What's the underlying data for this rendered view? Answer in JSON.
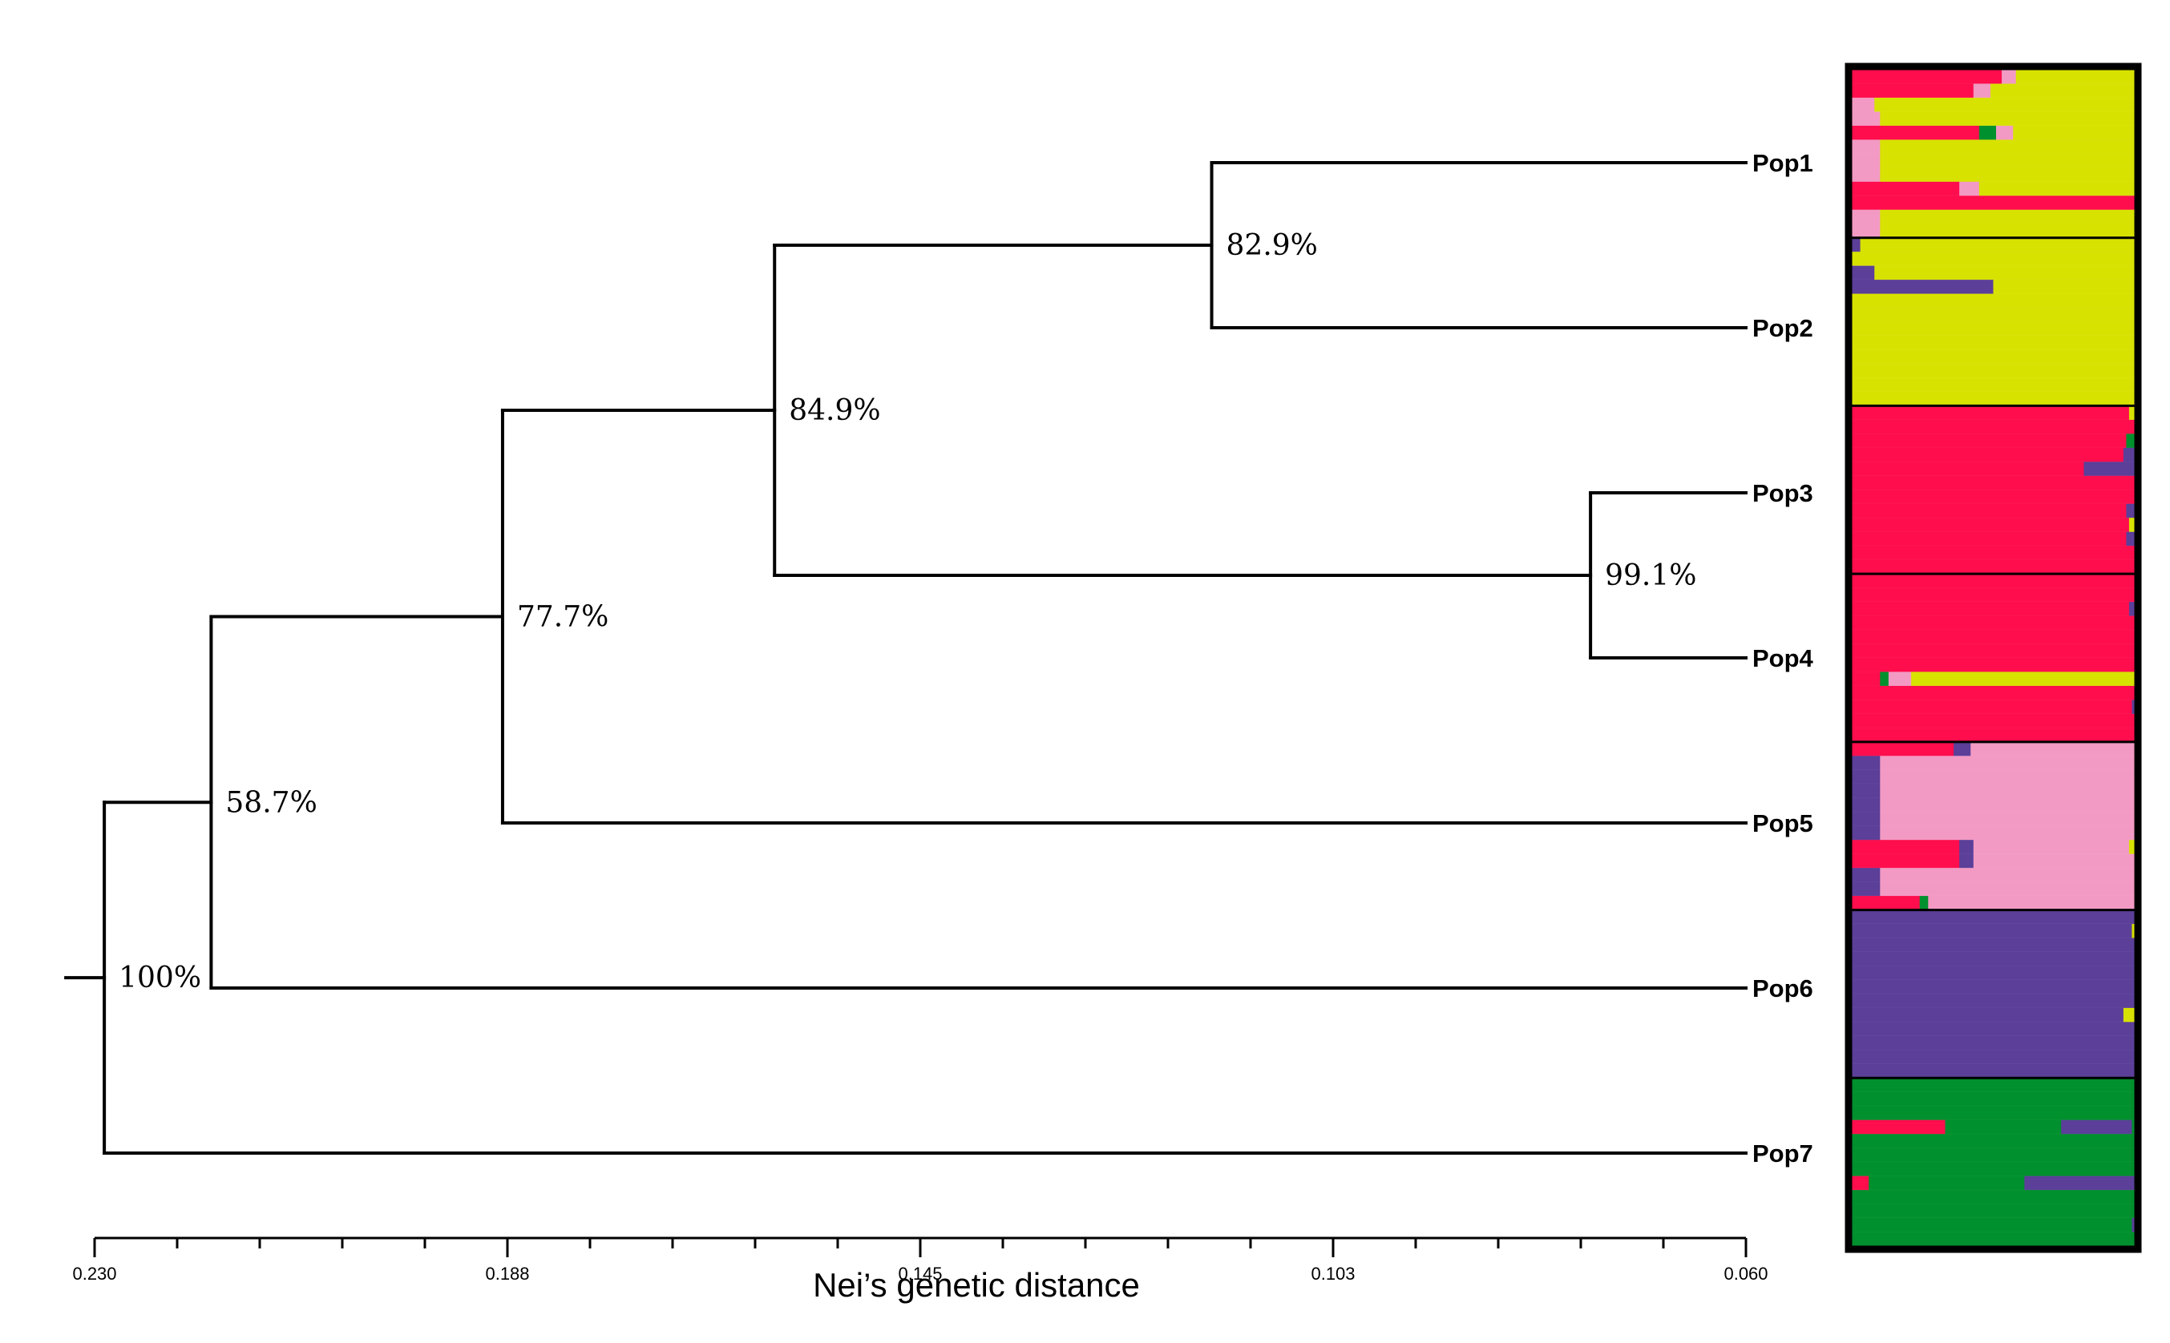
{
  "tree": {
    "leaves": [
      "Pop1",
      "Pop2",
      "Pop3",
      "Pop4",
      "Pop5",
      "Pop6",
      "Pop7"
    ],
    "nodes": [
      {
        "id": "n12",
        "children": [
          "Pop1",
          "Pop2"
        ],
        "height": 0.115,
        "support": "82.9%"
      },
      {
        "id": "n34",
        "children": [
          "Pop3",
          "Pop4"
        ],
        "height": 0.076,
        "support": "99.1%"
      },
      {
        "id": "n1234",
        "children": [
          "n12",
          "n34"
        ],
        "height": 0.16,
        "support": "84.9%"
      },
      {
        "id": "n12345",
        "children": [
          "n1234",
          "Pop5"
        ],
        "height": 0.188,
        "support": "77.7%"
      },
      {
        "id": "n123456",
        "children": [
          "n12345",
          "Pop6"
        ],
        "height": 0.218,
        "support": "58.7%"
      },
      {
        "id": "root",
        "children": [
          "n123456",
          "Pop7"
        ],
        "height": 0.229,
        "support": "100%"
      }
    ]
  },
  "axis": {
    "title": "Nei’s genetic distance",
    "range": [
      0.23,
      0.06
    ],
    "tick_labels": [
      "0.230",
      "0.188",
      "0.145",
      "0.103",
      "0.060"
    ],
    "minor_tick_count": 21
  },
  "structure_plot": {
    "colors": {
      "red": "#ff0d4d",
      "yellow": "#d8e200",
      "pink": "#f29ac4",
      "purple": "#5b3f99",
      "green": "#00902d"
    },
    "populations": [
      {
        "name": "Pop1",
        "individuals": [
          [
            [
              "red",
              0.53
            ],
            [
              "pink",
              0.05
            ],
            [
              "yellow",
              0.42
            ]
          ],
          [
            [
              "red",
              0.43
            ],
            [
              "pink",
              0.06
            ],
            [
              "yellow",
              0.51
            ]
          ],
          [
            [
              "pink",
              0.08
            ],
            [
              "yellow",
              0.92
            ]
          ],
          [
            [
              "pink",
              0.1
            ],
            [
              "yellow",
              0.9
            ]
          ],
          [
            [
              "red",
              0.45
            ],
            [
              "green",
              0.06
            ],
            [
              "pink",
              0.06
            ],
            [
              "yellow",
              0.43
            ]
          ],
          [
            [
              "pink",
              0.1
            ],
            [
              "yellow",
              0.9
            ]
          ],
          [
            [
              "pink",
              0.1
            ],
            [
              "yellow",
              0.9
            ]
          ],
          [
            [
              "pink",
              0.1
            ],
            [
              "yellow",
              0.9
            ]
          ],
          [
            [
              "red",
              0.38
            ],
            [
              "pink",
              0.07
            ],
            [
              "yellow",
              0.55
            ]
          ],
          [
            [
              "red",
              1.0
            ]
          ],
          [
            [
              "pink",
              0.1
            ],
            [
              "yellow",
              0.9
            ]
          ],
          [
            [
              "pink",
              0.1
            ],
            [
              "yellow",
              0.9
            ]
          ]
        ]
      },
      {
        "name": "Pop2",
        "individuals": [
          [
            [
              "purple",
              0.03
            ],
            [
              "yellow",
              0.97
            ]
          ],
          [
            [
              "yellow",
              1.0
            ]
          ],
          [
            [
              "purple",
              0.08
            ],
            [
              "yellow",
              0.92
            ]
          ],
          [
            [
              "purple",
              0.5
            ],
            [
              "yellow",
              0.5
            ]
          ],
          [
            [
              "yellow",
              1.0
            ]
          ],
          [
            [
              "yellow",
              1.0
            ]
          ],
          [
            [
              "yellow",
              1.0
            ]
          ],
          [
            [
              "yellow",
              1.0
            ]
          ],
          [
            [
              "yellow",
              1.0
            ]
          ],
          [
            [
              "yellow",
              1.0
            ]
          ],
          [
            [
              "yellow",
              1.0
            ]
          ],
          [
            [
              "yellow",
              1.0
            ]
          ]
        ]
      },
      {
        "name": "Pop3",
        "individuals": [
          [
            [
              "red",
              0.98
            ],
            [
              "yellow",
              0.02
            ]
          ],
          [
            [
              "red",
              1.0
            ]
          ],
          [
            [
              "red",
              0.97
            ],
            [
              "green",
              0.03
            ]
          ],
          [
            [
              "red",
              0.96
            ],
            [
              "purple",
              0.04
            ]
          ],
          [
            [
              "red",
              0.82
            ],
            [
              "purple",
              0.18
            ]
          ],
          [
            [
              "red",
              1.0
            ]
          ],
          [
            [
              "red",
              1.0
            ]
          ],
          [
            [
              "red",
              0.97
            ],
            [
              "purple",
              0.03
            ]
          ],
          [
            [
              "red",
              0.98
            ],
            [
              "yellow",
              0.02
            ]
          ],
          [
            [
              "red",
              0.97
            ],
            [
              "purple",
              0.03
            ]
          ],
          [
            [
              "red",
              1.0
            ]
          ],
          [
            [
              "red",
              1.0
            ]
          ]
        ]
      },
      {
        "name": "Pop4",
        "individuals": [
          [
            [
              "red",
              1.0
            ]
          ],
          [
            [
              "red",
              1.0
            ]
          ],
          [
            [
              "red",
              0.98
            ],
            [
              "purple",
              0.02
            ]
          ],
          [
            [
              "red",
              1.0
            ]
          ],
          [
            [
              "red",
              1.0
            ]
          ],
          [
            [
              "red",
              1.0
            ]
          ],
          [
            [
              "red",
              1.0
            ]
          ],
          [
            [
              "red",
              0.1
            ],
            [
              "green",
              0.03
            ],
            [
              "pink",
              0.08
            ],
            [
              "yellow",
              0.79
            ]
          ],
          [
            [
              "red",
              1.0
            ]
          ],
          [
            [
              "red",
              0.99
            ],
            [
              "purple",
              0.01
            ]
          ],
          [
            [
              "red",
              1.0
            ]
          ],
          [
            [
              "red",
              1.0
            ]
          ]
        ]
      },
      {
        "name": "Pop5",
        "individuals": [
          [
            [
              "red",
              0.36
            ],
            [
              "purple",
              0.06
            ],
            [
              "pink",
              0.58
            ]
          ],
          [
            [
              "purple",
              0.1
            ],
            [
              "pink",
              0.9
            ]
          ],
          [
            [
              "purple",
              0.1
            ],
            [
              "pink",
              0.9
            ]
          ],
          [
            [
              "purple",
              0.1
            ],
            [
              "pink",
              0.9
            ]
          ],
          [
            [
              "purple",
              0.1
            ],
            [
              "pink",
              0.9
            ]
          ],
          [
            [
              "purple",
              0.1
            ],
            [
              "pink",
              0.9
            ]
          ],
          [
            [
              "purple",
              0.1
            ],
            [
              "pink",
              0.9
            ]
          ],
          [
            [
              "red",
              0.38
            ],
            [
              "purple",
              0.05
            ],
            [
              "pink",
              0.55
            ],
            [
              "yellow",
              0.02
            ]
          ],
          [
            [
              "red",
              0.38
            ],
            [
              "purple",
              0.05
            ],
            [
              "pink",
              0.57
            ]
          ],
          [
            [
              "purple",
              0.1
            ],
            [
              "pink",
              0.9
            ]
          ],
          [
            [
              "purple",
              0.1
            ],
            [
              "pink",
              0.9
            ]
          ],
          [
            [
              "red",
              0.24
            ],
            [
              "green",
              0.03
            ],
            [
              "pink",
              0.11
            ],
            [
              "purple",
              0.0
            ],
            [
              "pink",
              0.62
            ]
          ]
        ]
      },
      {
        "name": "Pop6",
        "individuals": [
          [
            [
              "purple",
              1.0
            ]
          ],
          [
            [
              "purple",
              0.99
            ],
            [
              "yellow",
              0.01
            ]
          ],
          [
            [
              "purple",
              1.0
            ]
          ],
          [
            [
              "purple",
              1.0
            ]
          ],
          [
            [
              "purple",
              1.0
            ]
          ],
          [
            [
              "purple",
              1.0
            ]
          ],
          [
            [
              "purple",
              1.0
            ]
          ],
          [
            [
              "purple",
              0.96
            ],
            [
              "yellow",
              0.04
            ]
          ],
          [
            [
              "purple",
              1.0
            ]
          ],
          [
            [
              "purple",
              1.0
            ]
          ],
          [
            [
              "purple",
              1.0
            ]
          ],
          [
            [
              "purple",
              1.0
            ]
          ]
        ]
      },
      {
        "name": "Pop7",
        "individuals": [
          [
            [
              "green",
              1.0
            ]
          ],
          [
            [
              "green",
              1.0
            ]
          ],
          [
            [
              "green",
              1.0
            ]
          ],
          [
            [
              "red",
              0.33
            ],
            [
              "green",
              0.41
            ],
            [
              "purple",
              0.25
            ],
            [
              "green",
              0.01
            ]
          ],
          [
            [
              "green",
              1.0
            ]
          ],
          [
            [
              "green",
              1.0
            ]
          ],
          [
            [
              "green",
              1.0
            ]
          ],
          [
            [
              "red",
              0.06
            ],
            [
              "green",
              0.55
            ],
            [
              "purple",
              0.39
            ]
          ],
          [
            [
              "green",
              1.0
            ]
          ],
          [
            [
              "green",
              1.0
            ]
          ],
          [
            [
              "green",
              0.99
            ],
            [
              "purple",
              0.01
            ]
          ],
          [
            [
              "green",
              1.0
            ]
          ]
        ]
      }
    ]
  }
}
